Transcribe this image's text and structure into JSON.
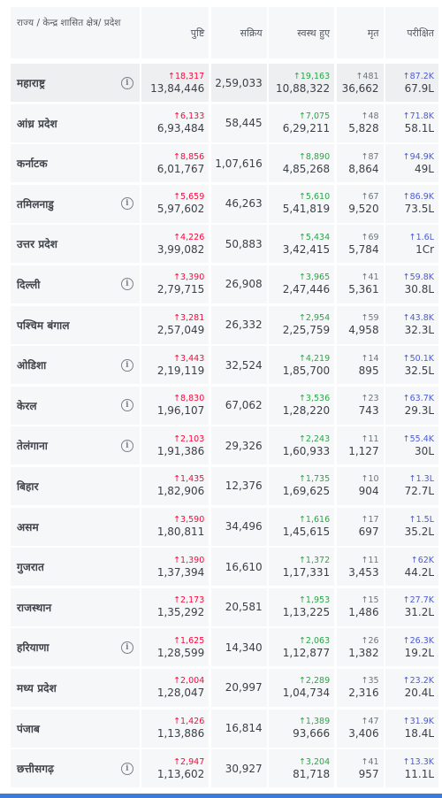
{
  "headers": {
    "state": "राज्य / केन्द्र शासित क्षेत्र/ प्रदेश",
    "confirmed": "पुष्टि",
    "active": "सक्रिय",
    "recovered": "स्वस्थ हुए",
    "deceased": "मृत",
    "tested": "परीक्षित"
  },
  "info_symbol": "i",
  "colors": {
    "confirmed_delta": "#ff073a",
    "recovered_delta": "#28a745",
    "deceased_delta": "#6c757d",
    "tested_delta": "#4d5bd1",
    "bottom_bar": "#3c7bd8"
  },
  "rows": [
    {
      "state": "महाराष्ट्र",
      "info": true,
      "c_delta": "↑18,317",
      "confirmed": "13,84,446",
      "active": "2,59,033",
      "r_delta": "↑19,163",
      "recovered": "10,88,322",
      "d_delta": "↑481",
      "deceased": "36,662",
      "t_delta": "↑87.2K",
      "tested": "67.9L"
    },
    {
      "state": "आंध्र प्रदेश",
      "info": false,
      "c_delta": "↑6,133",
      "confirmed": "6,93,484",
      "active": "58,445",
      "r_delta": "↑7,075",
      "recovered": "6,29,211",
      "d_delta": "↑48",
      "deceased": "5,828",
      "t_delta": "↑71.8K",
      "tested": "58.1L"
    },
    {
      "state": "कर्नाटक",
      "info": false,
      "c_delta": "↑8,856",
      "confirmed": "6,01,767",
      "active": "1,07,616",
      "r_delta": "↑8,890",
      "recovered": "4,85,268",
      "d_delta": "↑87",
      "deceased": "8,864",
      "t_delta": "↑94.9K",
      "tested": "49L"
    },
    {
      "state": "तमिलनाडु",
      "info": true,
      "c_delta": "↑5,659",
      "confirmed": "5,97,602",
      "active": "46,263",
      "r_delta": "↑5,610",
      "recovered": "5,41,819",
      "d_delta": "↑67",
      "deceased": "9,520",
      "t_delta": "↑86.9K",
      "tested": "73.5L"
    },
    {
      "state": "उत्तर प्रदेश",
      "info": false,
      "c_delta": "↑4,226",
      "confirmed": "3,99,082",
      "active": "50,883",
      "r_delta": "↑5,434",
      "recovered": "3,42,415",
      "d_delta": "↑69",
      "deceased": "5,784",
      "t_delta": "↑1.6L",
      "tested": "1Cr"
    },
    {
      "state": "दिल्ली",
      "info": true,
      "c_delta": "↑3,390",
      "confirmed": "2,79,715",
      "active": "26,908",
      "r_delta": "↑3,965",
      "recovered": "2,47,446",
      "d_delta": "↑41",
      "deceased": "5,361",
      "t_delta": "↑59.8K",
      "tested": "30.8L"
    },
    {
      "state": "पश्चिम बंगाल",
      "info": false,
      "c_delta": "↑3,281",
      "confirmed": "2,57,049",
      "active": "26,332",
      "r_delta": "↑2,954",
      "recovered": "2,25,759",
      "d_delta": "↑59",
      "deceased": "4,958",
      "t_delta": "↑43.8K",
      "tested": "32.3L"
    },
    {
      "state": "ओडिशा",
      "info": true,
      "c_delta": "↑3,443",
      "confirmed": "2,19,119",
      "active": "32,524",
      "r_delta": "↑4,219",
      "recovered": "1,85,700",
      "d_delta": "↑14",
      "deceased": "895",
      "t_delta": "↑50.1K",
      "tested": "32.5L"
    },
    {
      "state": "केरल",
      "info": true,
      "c_delta": "↑8,830",
      "confirmed": "1,96,107",
      "active": "67,062",
      "r_delta": "↑3,536",
      "recovered": "1,28,220",
      "d_delta": "↑23",
      "deceased": "743",
      "t_delta": "↑63.7K",
      "tested": "29.3L"
    },
    {
      "state": "तेलंगाना",
      "info": true,
      "c_delta": "↑2,103",
      "confirmed": "1,91,386",
      "active": "29,326",
      "r_delta": "↑2,243",
      "recovered": "1,60,933",
      "d_delta": "↑11",
      "deceased": "1,127",
      "t_delta": "↑55.4K",
      "tested": "30L"
    },
    {
      "state": "बिहार",
      "info": false,
      "c_delta": "↑1,435",
      "confirmed": "1,82,906",
      "active": "12,376",
      "r_delta": "↑1,735",
      "recovered": "1,69,625",
      "d_delta": "↑10",
      "deceased": "904",
      "t_delta": "↑1.3L",
      "tested": "72.7L"
    },
    {
      "state": "असम",
      "info": false,
      "c_delta": "↑3,590",
      "confirmed": "1,80,811",
      "active": "34,496",
      "r_delta": "↑1,616",
      "recovered": "1,45,615",
      "d_delta": "↑17",
      "deceased": "697",
      "t_delta": "↑1.5L",
      "tested": "35.2L"
    },
    {
      "state": "गुजरात",
      "info": false,
      "c_delta": "↑1,390",
      "confirmed": "1,37,394",
      "active": "16,610",
      "r_delta": "↑1,372",
      "recovered": "1,17,331",
      "d_delta": "↑11",
      "deceased": "3,453",
      "t_delta": "↑62K",
      "tested": "44.2L"
    },
    {
      "state": "राजस्थान",
      "info": false,
      "c_delta": "↑2,173",
      "confirmed": "1,35,292",
      "active": "20,581",
      "r_delta": "↑1,953",
      "recovered": "1,13,225",
      "d_delta": "↑15",
      "deceased": "1,486",
      "t_delta": "↑27.7K",
      "tested": "31.2L"
    },
    {
      "state": "हरियाणा",
      "info": true,
      "c_delta": "↑1,625",
      "confirmed": "1,28,599",
      "active": "14,340",
      "r_delta": "↑2,063",
      "recovered": "1,12,877",
      "d_delta": "↑26",
      "deceased": "1,382",
      "t_delta": "↑26.3K",
      "tested": "19.2L"
    },
    {
      "state": "मध्य प्रदेश",
      "info": false,
      "c_delta": "↑2,004",
      "confirmed": "1,28,047",
      "active": "20,997",
      "r_delta": "↑2,289",
      "recovered": "1,04,734",
      "d_delta": "↑35",
      "deceased": "2,316",
      "t_delta": "↑23.2K",
      "tested": "20.4L"
    },
    {
      "state": "पंजाब",
      "info": false,
      "c_delta": "↑1,426",
      "confirmed": "1,13,886",
      "active": "16,814",
      "r_delta": "↑1,389",
      "recovered": "93,666",
      "d_delta": "↑47",
      "deceased": "3,406",
      "t_delta": "↑31.9K",
      "tested": "18.4L"
    },
    {
      "state": "छत्तीसगढ़",
      "info": true,
      "c_delta": "↑2,947",
      "confirmed": "1,13,602",
      "active": "30,927",
      "r_delta": "↑3,204",
      "recovered": "81,718",
      "d_delta": "↑41",
      "deceased": "957",
      "t_delta": "↑13.3K",
      "tested": "11.1L"
    }
  ]
}
